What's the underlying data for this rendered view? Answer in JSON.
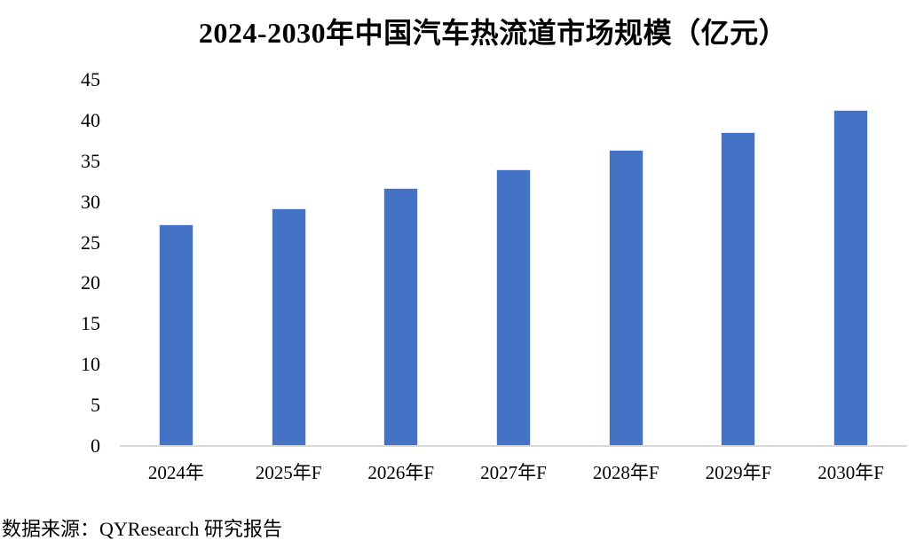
{
  "chart_data": {
    "type": "bar",
    "title": "2024-2030年中国汽车热流道市场规模（亿元）",
    "categories": [
      "2024年",
      "2025年F",
      "2026年F",
      "2027年F",
      "2028年F",
      "2029年F",
      "2030年F"
    ],
    "values": [
      27.1,
      29.1,
      31.6,
      33.9,
      36.3,
      38.5,
      41.2
    ],
    "xlabel": "",
    "ylabel": "",
    "ylim": [
      0,
      45
    ],
    "yticks": [
      0,
      5,
      10,
      15,
      20,
      25,
      30,
      35,
      40,
      45
    ],
    "grid": false,
    "legend": false,
    "bar_color": "#4472c4",
    "axis_line_color": "#d9d9d9"
  },
  "footer": {
    "source_note": "数据来源：QYResearch 研究报告"
  }
}
